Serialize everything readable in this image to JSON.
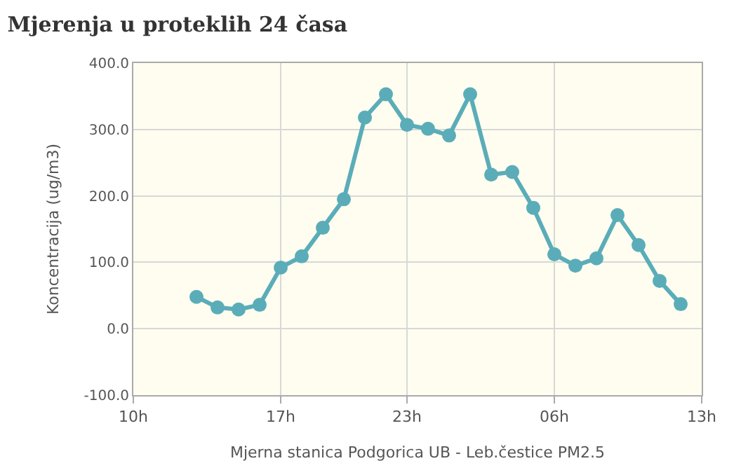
{
  "chart_data": {
    "type": "line",
    "title": "Mjerenja u proteklih 24 časa",
    "xlabel": "Mjerna stanica Podgorica UB - Leb.čestice PM2.5",
    "ylabel": "Koncentracija (ug/m3)",
    "x": [
      "--01-01T13:00",
      "--01-01T14:00",
      "--01-01T15:00",
      "--01-01T16:00",
      "--01-01T17:00",
      "--01-01T18:00",
      "--01-01T19:00",
      "--01-01T20:00",
      "--01-01T21:00",
      "--01-01T22:00",
      "--01-01T23:00",
      "--01-02T00:00",
      "--01-02T01:00",
      "--01-02T02:00",
      "--01-02T03:00",
      "--01-02T04:00",
      "--01-02T05:00",
      "--01-02T06:00",
      "--01-02T07:00",
      "--01-02T08:00",
      "--01-02T09:00",
      "--01-02T10:00",
      "--01-02T11:00",
      "--01-02T12:00"
    ],
    "series": [
      {
        "color": "#5aadb8",
        "values": [
          48,
          32,
          29,
          36,
          92,
          109,
          152,
          195,
          318,
          353,
          307,
          301,
          291,
          353,
          232,
          236,
          182,
          112,
          95,
          106,
          171,
          126,
          72,
          37
        ]
      }
    ],
    "xlim": [
      "--01-01T10:00",
      "--01-02T13:00"
    ],
    "xticks": [
      {
        "value": "--01-01T10:00",
        "label": "10h"
      },
      {
        "value": "--01-01T17:00",
        "label": "17h"
      },
      {
        "value": "--01-01T23:00",
        "label": "23h"
      },
      {
        "value": "--01-02T06:00",
        "label": "06h"
      },
      {
        "value": "--01-02T13:00",
        "label": "13h"
      }
    ],
    "ylim": [
      -100,
      400
    ],
    "yticks": [
      {
        "value": -100,
        "label": "-100.0"
      },
      {
        "value": 0,
        "label": "0.0"
      },
      {
        "value": 100,
        "label": "100.0"
      },
      {
        "value": 200,
        "label": "200.0"
      },
      {
        "value": 300,
        "label": "300.0"
      },
      {
        "value": 400,
        "label": "400.0"
      }
    ],
    "grid": true,
    "legend": false,
    "marker": "circle",
    "line_style": "solid"
  }
}
